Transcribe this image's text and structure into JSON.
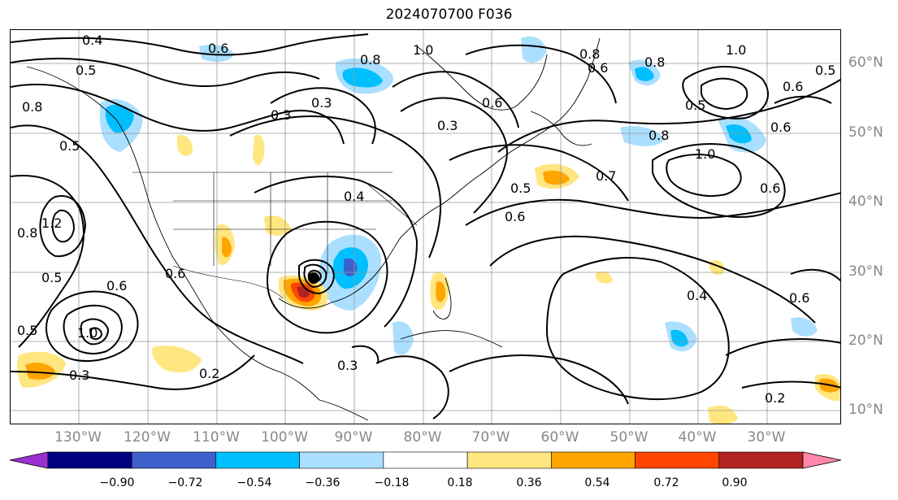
{
  "title": "2024070700 F036",
  "longitude_labels": [
    "130°W",
    "120°W",
    "110°W",
    "100°W",
    "90°W",
    "80°W",
    "70°W",
    "60°W",
    "50°W",
    "40°W",
    "30°W"
  ],
  "latitude_labels": [
    "60°N",
    "50°N",
    "40°N",
    "30°N",
    "20°N",
    "10°N"
  ],
  "colorbar": {
    "tick_labels": [
      "−0.90",
      "−0.72",
      "−0.54",
      "−0.36",
      "−0.18",
      "0.18",
      "0.36",
      "0.54",
      "0.72",
      "0.90"
    ],
    "colors": [
      "#9b30d0",
      "#000080",
      "#3d5fcc",
      "#00bfff",
      "#aadfff",
      "#ffffff",
      "#ffe680",
      "#ffa500",
      "#ff4500",
      "#b22222",
      "#ff88aa"
    ]
  },
  "contour_labels": [
    "0.4",
    "0.5",
    "0.8",
    "0.6",
    "0.8",
    "1.0",
    "0.6",
    "0.8",
    "1.0",
    "0.8",
    "0.6",
    "0.5",
    "0.6",
    "0.5",
    "0.3",
    "0.3",
    "0.6",
    "0.3",
    "0.5",
    "0.6",
    "0.8",
    "1.0",
    "0.7",
    "0.6",
    "0.4",
    "0.5",
    "0.6",
    "1.2",
    "0.8",
    "0.6",
    "0.5",
    "0.5",
    "1.0",
    "0.3",
    "0.2",
    "0.3",
    "0.4",
    "0.6",
    "0.2"
  ]
}
